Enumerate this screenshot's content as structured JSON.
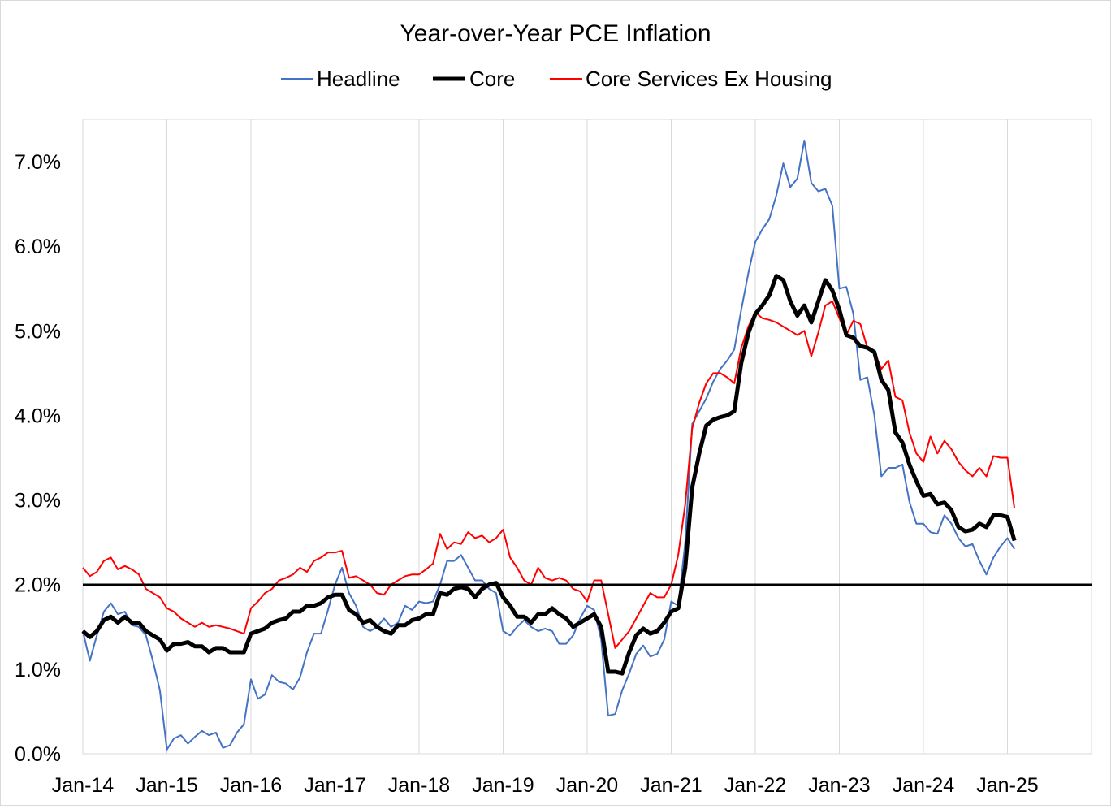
{
  "chart_data": {
    "type": "line",
    "title": "Year-over-Year PCE Inflation",
    "xlabel": "",
    "ylabel": "",
    "ylim": [
      0,
      7.5
    ],
    "y_ticks": [
      0,
      1,
      2,
      3,
      4,
      5,
      6,
      7
    ],
    "y_tick_labels": [
      "0.0%",
      "1.0%",
      "2.0%",
      "3.0%",
      "4.0%",
      "5.0%",
      "6.0%",
      "7.0%"
    ],
    "x_ticks": [
      0,
      12,
      24,
      36,
      48,
      60,
      72,
      84,
      96,
      108,
      120,
      132
    ],
    "x_tick_labels": [
      "Jan-14",
      "Jan-15",
      "Jan-16",
      "Jan-17",
      "Jan-18",
      "Jan-19",
      "Jan-20",
      "Jan-21",
      "Jan-22",
      "Jan-23",
      "Jan-24",
      "Jan-25"
    ],
    "x_range_months": [
      0,
      144
    ],
    "reference_line": 2.0,
    "grid": "vertical",
    "legend_position": "top",
    "start_month": "Jan-14",
    "series": [
      {
        "name": "Headline",
        "color": "#4472c4",
        "values": [
          1.45,
          1.1,
          1.4,
          1.68,
          1.78,
          1.65,
          1.68,
          1.52,
          1.5,
          1.4,
          1.1,
          0.75,
          0.05,
          0.18,
          0.22,
          0.12,
          0.2,
          0.27,
          0.22,
          0.25,
          0.07,
          0.1,
          0.25,
          0.35,
          0.88,
          0.65,
          0.7,
          0.93,
          0.85,
          0.83,
          0.76,
          0.9,
          1.2,
          1.42,
          1.42,
          1.7,
          2.0,
          2.2,
          1.9,
          1.75,
          1.5,
          1.45,
          1.5,
          1.6,
          1.5,
          1.55,
          1.75,
          1.7,
          1.8,
          1.78,
          1.8,
          2.0,
          2.28,
          2.28,
          2.35,
          2.2,
          2.05,
          2.05,
          1.95,
          1.9,
          1.45,
          1.4,
          1.5,
          1.58,
          1.5,
          1.45,
          1.48,
          1.45,
          1.3,
          1.3,
          1.4,
          1.6,
          1.75,
          1.7,
          1.35,
          0.45,
          0.47,
          0.75,
          0.95,
          1.18,
          1.28,
          1.15,
          1.18,
          1.35,
          1.8,
          1.75,
          2.5,
          3.9,
          4.05,
          4.2,
          4.4,
          4.55,
          4.65,
          4.78,
          5.25,
          5.68,
          6.05,
          6.2,
          6.32,
          6.6,
          6.98,
          6.7,
          6.8,
          7.25,
          6.75,
          6.65,
          6.68,
          6.48,
          5.5,
          5.52,
          5.2,
          4.42,
          4.45,
          4.0,
          3.28,
          3.38,
          3.38,
          3.42,
          2.98,
          2.72,
          2.72,
          2.62,
          2.6,
          2.82,
          2.72,
          2.55,
          2.45,
          2.48,
          2.28,
          2.12,
          2.32,
          2.45,
          2.55,
          2.42
        ]
      },
      {
        "name": "Core",
        "color": "#000000",
        "values": [
          1.45,
          1.38,
          1.45,
          1.58,
          1.62,
          1.55,
          1.62,
          1.55,
          1.55,
          1.45,
          1.4,
          1.35,
          1.22,
          1.3,
          1.3,
          1.32,
          1.27,
          1.27,
          1.2,
          1.25,
          1.25,
          1.2,
          1.2,
          1.2,
          1.42,
          1.45,
          1.48,
          1.55,
          1.58,
          1.6,
          1.68,
          1.68,
          1.75,
          1.75,
          1.78,
          1.85,
          1.88,
          1.88,
          1.7,
          1.65,
          1.55,
          1.58,
          1.5,
          1.45,
          1.42,
          1.52,
          1.52,
          1.58,
          1.6,
          1.65,
          1.65,
          1.9,
          1.88,
          1.95,
          1.97,
          1.95,
          1.85,
          1.95,
          2.0,
          2.02,
          1.85,
          1.75,
          1.62,
          1.62,
          1.55,
          1.65,
          1.65,
          1.72,
          1.65,
          1.6,
          1.5,
          1.55,
          1.6,
          1.65,
          1.5,
          0.97,
          0.97,
          0.95,
          1.2,
          1.4,
          1.48,
          1.42,
          1.45,
          1.55,
          1.68,
          1.72,
          2.2,
          3.15,
          3.55,
          3.88,
          3.95,
          3.98,
          4.0,
          4.05,
          4.62,
          4.97,
          5.2,
          5.3,
          5.42,
          5.65,
          5.6,
          5.35,
          5.18,
          5.3,
          5.1,
          5.35,
          5.6,
          5.48,
          5.25,
          4.95,
          4.92,
          4.82,
          4.8,
          4.75,
          4.42,
          4.3,
          3.8,
          3.68,
          3.42,
          3.22,
          3.05,
          3.07,
          2.95,
          2.97,
          2.88,
          2.68,
          2.63,
          2.65,
          2.72,
          2.68,
          2.82,
          2.82,
          2.8,
          2.52
        ]
      },
      {
        "name": "Core Services Ex Housing",
        "color": "#ff0000",
        "values": [
          2.2,
          2.1,
          2.15,
          2.28,
          2.32,
          2.18,
          2.22,
          2.18,
          2.12,
          1.95,
          1.9,
          1.85,
          1.72,
          1.68,
          1.6,
          1.55,
          1.5,
          1.55,
          1.5,
          1.52,
          1.5,
          1.48,
          1.45,
          1.42,
          1.72,
          1.8,
          1.9,
          1.95,
          2.05,
          2.08,
          2.12,
          2.2,
          2.15,
          2.28,
          2.32,
          2.38,
          2.38,
          2.4,
          2.08,
          2.1,
          2.05,
          2.0,
          1.9,
          1.88,
          2.0,
          2.05,
          2.1,
          2.12,
          2.12,
          2.18,
          2.25,
          2.6,
          2.42,
          2.5,
          2.48,
          2.62,
          2.55,
          2.58,
          2.5,
          2.55,
          2.65,
          2.32,
          2.2,
          2.05,
          2.0,
          2.2,
          2.08,
          2.05,
          2.08,
          2.05,
          1.95,
          1.92,
          1.8,
          2.05,
          2.05,
          1.65,
          1.25,
          1.35,
          1.45,
          1.6,
          1.75,
          1.9,
          1.85,
          1.85,
          2.0,
          2.35,
          2.95,
          3.85,
          4.15,
          4.38,
          4.5,
          4.5,
          4.45,
          4.38,
          4.8,
          5.05,
          5.22,
          5.15,
          5.13,
          5.1,
          5.05,
          5.0,
          4.95,
          5.0,
          4.7,
          4.98,
          5.3,
          5.35,
          5.15,
          4.95,
          5.12,
          5.08,
          4.8,
          4.75,
          4.55,
          4.65,
          4.22,
          4.18,
          3.8,
          3.55,
          3.45,
          3.75,
          3.55,
          3.7,
          3.6,
          3.45,
          3.35,
          3.28,
          3.38,
          3.28,
          3.52,
          3.5,
          3.5,
          2.9
        ]
      }
    ]
  }
}
